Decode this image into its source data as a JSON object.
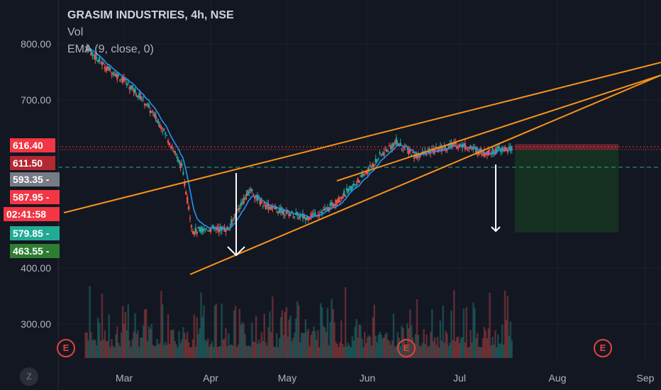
{
  "header": {
    "title": "GRASIM INDUSTRIES, 4h, NSE",
    "vol_label": "Vol",
    "ema_label": "EMA (9, close, 0)"
  },
  "price_labels": [
    {
      "text": "616.40",
      "color": "#f23645",
      "value": 616.4
    },
    {
      "text": "611.50",
      "color": "#b22833",
      "value": 611.5
    },
    {
      "text": "593.35 -",
      "color": "#787b86",
      "value": 593.35
    },
    {
      "text": "587.95 -",
      "color": "#f23645",
      "value": 587.95
    },
    {
      "text": "02:41:58",
      "color": "#f23645"
    },
    {
      "text": "579.85 -",
      "color": "#22ab94",
      "value": 579.85
    },
    {
      "text": "463.55 -",
      "color": "#2e7d32",
      "value": 463.55
    }
  ],
  "timezone_button": "Z",
  "earnings_badge": "E",
  "colors": {
    "background": "#131722",
    "trendline": "#f7931a",
    "ema": "#2196f3",
    "up": "#26a69a",
    "down": "#ef5350",
    "stop_zone": "#f23645",
    "target_zone": "#1b5e20"
  },
  "chart_data": {
    "type": "candlestick",
    "symbol": "GRASIM INDUSTRIES",
    "interval": "4h",
    "exchange": "NSE",
    "y_ticks": [
      "800.00",
      "700.00",
      "400.00",
      "300.00"
    ],
    "x_ticks": [
      "Mar",
      "Apr",
      "May",
      "Jun",
      "Jul",
      "Aug",
      "Sep"
    ],
    "price_path": [
      [
        "Feb 15",
        795
      ],
      [
        "Feb 22",
        760
      ],
      [
        "Mar 1",
        735
      ],
      [
        "Mar 8",
        700
      ],
      [
        "Mar 15",
        650
      ],
      [
        "Mar 22",
        580
      ],
      [
        "Mar 26",
        465
      ],
      [
        "Apr 1",
        470
      ],
      [
        "Apr 8",
        470
      ],
      [
        "Apr 12",
        510
      ],
      [
        "Apr 16",
        540
      ],
      [
        "Apr 20",
        515
      ],
      [
        "Apr 28",
        500
      ],
      [
        "May 6",
        490
      ],
      [
        "May 14",
        505
      ],
      [
        "May 22",
        540
      ],
      [
        "May 28",
        570
      ],
      [
        "Jun 2",
        600
      ],
      [
        "Jun 8",
        625
      ],
      [
        "Jun 15",
        600
      ],
      [
        "Jun 22",
        610
      ],
      [
        "Jun 29",
        620
      ],
      [
        "Jul 3",
        618
      ],
      [
        "Jul 10",
        605
      ],
      [
        "Jul 16",
        612
      ],
      [
        "Jul 20",
        611.5
      ]
    ],
    "annotations": {
      "trendlines": 3,
      "down_arrows": 2,
      "earnings_markers": 3,
      "risk_reward_box": {
        "entry": 611.5,
        "stop": 616.4,
        "target": 463.55
      }
    }
  }
}
